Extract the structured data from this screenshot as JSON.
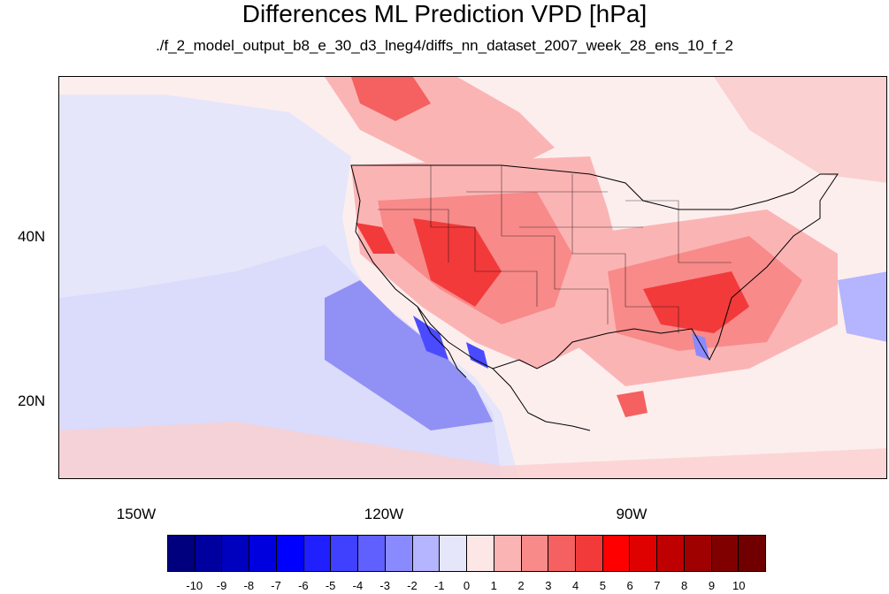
{
  "title": "Differences ML Prediction VPD [hPa]",
  "subtitle": "./f_2_model_output_b8_e_30_d3_lneg4/diffs_nn_dataset_2007_week_28_ens_10_f_2",
  "map": {
    "lat_labels": [
      "40N",
      "20N"
    ],
    "lon_labels": [
      "150W",
      "120W",
      "90W"
    ],
    "lat_range": [
      10,
      59
    ],
    "lon_range": [
      -160,
      -60
    ]
  },
  "colorbar": {
    "labels": [
      "-10",
      "-9",
      "-8",
      "-7",
      "-6",
      "-5",
      "-4",
      "-3",
      "-2",
      "-1",
      "0",
      "1",
      "2",
      "3",
      "4",
      "5",
      "6",
      "7",
      "8",
      "9",
      "10"
    ],
    "colors": [
      "#00007f",
      "#00009f",
      "#0000bf",
      "#0000df",
      "#0000ff",
      "#2020ff",
      "#4040ff",
      "#6060ff",
      "#8a8aff",
      "#b4b4ff",
      "#e6e6fa",
      "#fde6e6",
      "#fbb4b4",
      "#f88a8a",
      "#f56060",
      "#f23a3a",
      "#ff0000",
      "#df0000",
      "#bf0000",
      "#9f0000",
      "#800000",
      "#700000"
    ]
  }
}
